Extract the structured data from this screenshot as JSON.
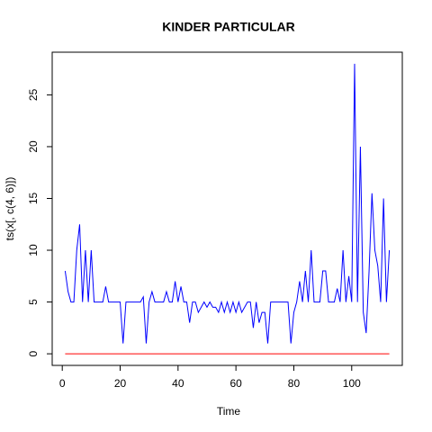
{
  "chart_data": {
    "type": "line",
    "title": "KINDER PARTICULAR",
    "x_label": "Time",
    "y_label": "ts(x[, c(4, 6)])",
    "x": [
      1,
      2,
      3,
      4,
      5,
      6,
      7,
      8,
      9,
      10,
      11,
      12,
      13,
      14,
      15,
      16,
      17,
      18,
      19,
      20,
      21,
      22,
      23,
      24,
      25,
      26,
      27,
      28,
      29,
      30,
      31,
      32,
      33,
      34,
      35,
      36,
      37,
      38,
      39,
      40,
      41,
      42,
      43,
      44,
      45,
      46,
      47,
      48,
      49,
      50,
      51,
      52,
      53,
      54,
      55,
      56,
      57,
      58,
      59,
      60,
      61,
      62,
      63,
      64,
      65,
      66,
      67,
      68,
      69,
      70,
      71,
      72,
      73,
      74,
      75,
      76,
      77,
      78,
      79,
      80,
      81,
      82,
      83,
      84,
      85,
      86,
      87,
      88,
      89,
      90,
      91,
      92,
      93,
      94,
      95,
      96,
      97,
      98,
      99,
      100,
      101,
      102,
      103,
      104,
      105,
      106,
      107,
      108,
      109,
      110,
      111,
      112,
      113
    ],
    "series": [
      {
        "color": "#0000ff",
        "values": [
          8,
          6,
          5,
          5,
          10,
          12.5,
          5,
          10,
          5,
          10,
          5,
          5,
          5,
          5,
          6.5,
          5,
          5,
          5,
          5,
          5,
          1,
          5,
          5,
          5,
          5,
          5,
          5,
          5.5,
          1,
          5,
          6,
          5,
          5,
          5,
          5,
          6,
          5,
          5,
          7,
          5,
          6.5,
          5,
          5,
          3,
          5,
          5,
          4,
          4.5,
          5,
          4.5,
          5,
          4.5,
          4.5,
          4,
          5,
          4,
          5,
          4,
          5,
          4,
          5,
          4,
          4.5,
          5,
          5,
          2.5,
          5,
          3,
          4,
          4,
          1,
          5,
          5,
          5,
          5,
          5,
          5,
          5,
          1,
          4,
          5,
          7,
          5,
          8,
          5,
          10,
          5,
          5,
          5,
          8,
          8,
          5,
          5,
          5,
          6.3,
          5,
          10,
          5,
          7.5,
          5,
          28,
          5,
          20,
          4,
          2,
          8,
          15.5,
          10,
          8.5,
          5,
          15,
          5,
          10
        ]
      },
      {
        "color": "#ff0000",
        "values": [
          0,
          0,
          0,
          0,
          0,
          0,
          0,
          0,
          0,
          0,
          0,
          0,
          0,
          0,
          0,
          0,
          0,
          0,
          0,
          0,
          0,
          0,
          0,
          0,
          0,
          0,
          0,
          0,
          0,
          0,
          0,
          0,
          0,
          0,
          0,
          0,
          0,
          0,
          0,
          0,
          0,
          0,
          0,
          0,
          0,
          0,
          0,
          0,
          0,
          0,
          0,
          0,
          0,
          0,
          0,
          0,
          0,
          0,
          0,
          0,
          0,
          0,
          0,
          0,
          0,
          0,
          0,
          0,
          0,
          0,
          0,
          0,
          0,
          0,
          0,
          0,
          0,
          0,
          0,
          0,
          0,
          0,
          0,
          0,
          0,
          0,
          0,
          0,
          0,
          0,
          0,
          0,
          0,
          0,
          0,
          0,
          0,
          0,
          0,
          0,
          0,
          0,
          0,
          0,
          0,
          0,
          0,
          0,
          0,
          0,
          0,
          0,
          0
        ]
      }
    ],
    "xlim": [
      -3.48,
      117.48
    ],
    "xticks": [
      0,
      20,
      40,
      60,
      80,
      100
    ],
    "ylim": [
      -1.12,
      29.12
    ],
    "yticks": [
      0,
      5,
      10,
      15,
      20,
      25
    ]
  }
}
